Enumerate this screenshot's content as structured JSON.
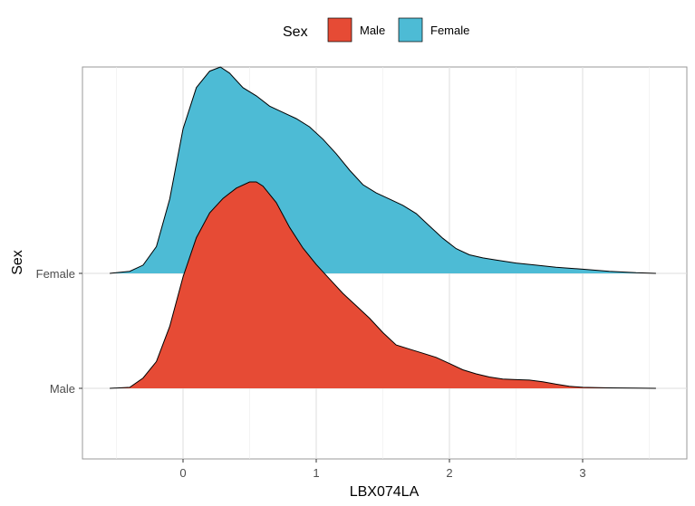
{
  "chart_data": {
    "type": "ridgeline",
    "title": "",
    "xlabel": "LBX074LA",
    "ylabel": "Sex",
    "xlim": [
      -0.75,
      3.65
    ],
    "x_ticks": [
      0,
      1,
      2,
      3
    ],
    "x_tick_labels": [
      "0",
      "1",
      "2",
      "3"
    ],
    "y_categories": [
      "Male",
      "Female"
    ],
    "legend": {
      "title": "Sex",
      "position": "top",
      "entries": [
        {
          "label": "Male",
          "color": "#E64B35"
        },
        {
          "label": "Female",
          "color": "#4DBBD5"
        }
      ]
    },
    "series": [
      {
        "name": "Male",
        "color": "#E64B35",
        "points": [
          [
            -0.55,
            0.0
          ],
          [
            -0.4,
            0.005
          ],
          [
            -0.3,
            0.05
          ],
          [
            -0.2,
            0.13
          ],
          [
            -0.1,
            0.3
          ],
          [
            0.0,
            0.54
          ],
          [
            0.1,
            0.73
          ],
          [
            0.2,
            0.85
          ],
          [
            0.3,
            0.92
          ],
          [
            0.4,
            0.97
          ],
          [
            0.5,
            1.0
          ],
          [
            0.55,
            1.0
          ],
          [
            0.6,
            0.98
          ],
          [
            0.7,
            0.9
          ],
          [
            0.8,
            0.78
          ],
          [
            0.9,
            0.68
          ],
          [
            1.0,
            0.6
          ],
          [
            1.1,
            0.53
          ],
          [
            1.2,
            0.46
          ],
          [
            1.3,
            0.4
          ],
          [
            1.4,
            0.34
          ],
          [
            1.5,
            0.27
          ],
          [
            1.6,
            0.21
          ],
          [
            1.7,
            0.19
          ],
          [
            1.8,
            0.17
          ],
          [
            1.9,
            0.15
          ],
          [
            2.0,
            0.12
          ],
          [
            2.1,
            0.09
          ],
          [
            2.2,
            0.07
          ],
          [
            2.3,
            0.055
          ],
          [
            2.4,
            0.045
          ],
          [
            2.5,
            0.042
          ],
          [
            2.6,
            0.04
          ],
          [
            2.7,
            0.032
          ],
          [
            2.8,
            0.02
          ],
          [
            2.9,
            0.01
          ],
          [
            3.0,
            0.005
          ],
          [
            3.2,
            0.002
          ],
          [
            3.4,
            0.001
          ],
          [
            3.55,
            0.0
          ]
        ]
      },
      {
        "name": "Female",
        "color": "#4DBBD5",
        "points": [
          [
            -0.55,
            0.0
          ],
          [
            -0.4,
            0.01
          ],
          [
            -0.3,
            0.04
          ],
          [
            -0.2,
            0.13
          ],
          [
            -0.1,
            0.36
          ],
          [
            0.0,
            0.7
          ],
          [
            0.1,
            0.9
          ],
          [
            0.2,
            0.98
          ],
          [
            0.28,
            1.0
          ],
          [
            0.35,
            0.97
          ],
          [
            0.45,
            0.9
          ],
          [
            0.55,
            0.86
          ],
          [
            0.65,
            0.81
          ],
          [
            0.75,
            0.78
          ],
          [
            0.85,
            0.75
          ],
          [
            0.95,
            0.71
          ],
          [
            1.05,
            0.65
          ],
          [
            1.15,
            0.58
          ],
          [
            1.25,
            0.5
          ],
          [
            1.35,
            0.43
          ],
          [
            1.45,
            0.39
          ],
          [
            1.55,
            0.36
          ],
          [
            1.65,
            0.33
          ],
          [
            1.75,
            0.29
          ],
          [
            1.85,
            0.23
          ],
          [
            1.95,
            0.17
          ],
          [
            2.05,
            0.12
          ],
          [
            2.15,
            0.09
          ],
          [
            2.25,
            0.075
          ],
          [
            2.35,
            0.065
          ],
          [
            2.5,
            0.05
          ],
          [
            2.65,
            0.04
          ],
          [
            2.8,
            0.03
          ],
          [
            3.0,
            0.02
          ],
          [
            3.2,
            0.01
          ],
          [
            3.4,
            0.003
          ],
          [
            3.55,
            0.0
          ]
        ]
      }
    ]
  }
}
